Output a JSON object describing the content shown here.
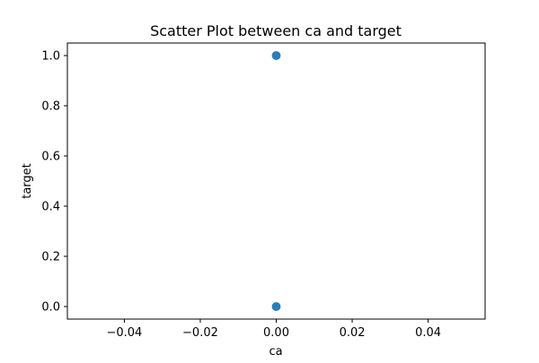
{
  "chart_data": {
    "type": "scatter",
    "title": "Scatter Plot between ca and target",
    "xlabel": "ca",
    "ylabel": "target",
    "xlim": [
      -0.055,
      0.055
    ],
    "ylim": [
      -0.05,
      1.05
    ],
    "xticks": [
      -0.04,
      -0.02,
      0.0,
      0.02,
      0.04
    ],
    "xtick_labels": [
      "−0.04",
      "−0.02",
      "0.00",
      "0.02",
      "0.04"
    ],
    "yticks": [
      0.0,
      0.2,
      0.4,
      0.6,
      0.8,
      1.0
    ],
    "ytick_labels": [
      "0.0",
      "0.2",
      "0.4",
      "0.6",
      "0.8",
      "1.0"
    ],
    "grid": false,
    "series": [
      {
        "color": "#1f77b4",
        "points": [
          {
            "x": 0.0,
            "y": 1.0
          },
          {
            "x": 0.0,
            "y": 0.0
          }
        ]
      }
    ]
  }
}
